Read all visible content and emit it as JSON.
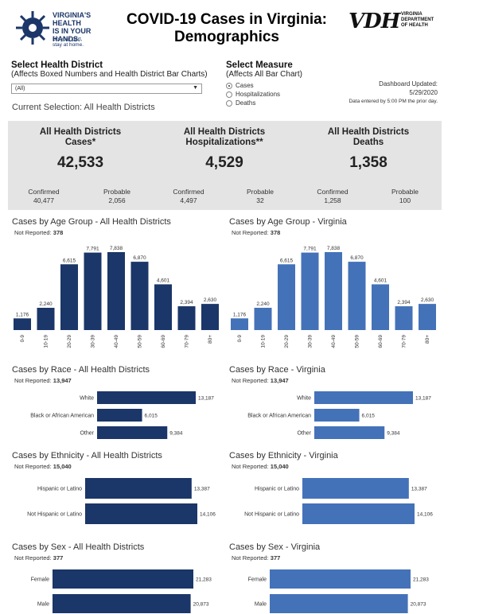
{
  "header": {
    "logo_lines": [
      "VIRGINIA'S",
      "HEALTH",
      "IS IN YOUR",
      "HANDS."
    ],
    "logo_tag": [
      "Do your part,",
      "stay at home."
    ],
    "title_line1": "COVID-19 Cases in Virginia:",
    "title_line2": "Demographics",
    "vdh_mark": "VDH",
    "vdh_org": [
      "VIRGINIA",
      "DEPARTMENT",
      "OF HEALTH"
    ]
  },
  "filters": {
    "district_label": "Select Health District",
    "district_sub": "(Affects Boxed Numbers and Health District Bar Charts)",
    "district_value": "(All)",
    "current_selection": "Current Selection: All Health Districts",
    "measure_label": "Select Measure",
    "measure_sub": "(Affects All Bar Chart)",
    "measure_options": [
      "Cases",
      "Hospitalizations",
      "Deaths"
    ],
    "measure_selected": "Cases"
  },
  "updated": {
    "label": "Dashboard Updated:",
    "date": "5/29/2020",
    "note": "Data entered by 5:00 PM the prior day."
  },
  "summary": [
    {
      "title1": "All Health Districts",
      "title2": "Cases*",
      "value": "42,533",
      "sub": [
        {
          "label": "Confirmed",
          "value": "40,477"
        },
        {
          "label": "Probable",
          "value": "2,056"
        }
      ]
    },
    {
      "title1": "All Health Districts",
      "title2": "Hospitalizations**",
      "value": "4,529",
      "sub": [
        {
          "label": "Confirmed",
          "value": "4,497"
        },
        {
          "label": "Probable",
          "value": "32"
        }
      ]
    },
    {
      "title1": "All Health Districts",
      "title2": "Deaths",
      "value": "1,358",
      "sub": [
        {
          "label": "Confirmed",
          "value": "1,258"
        },
        {
          "label": "Probable",
          "value": "100"
        }
      ]
    }
  ],
  "colors": {
    "district": "#1b3668",
    "virginia": "#4472b8"
  },
  "chart_data": [
    {
      "id": "age-district",
      "type": "bar",
      "title": "Cases by Age Group - All Health Districts",
      "not_reported_label": "Not Reported:",
      "not_reported": "378",
      "categories": [
        "0-9",
        "10-19",
        "20-29",
        "30-39",
        "40-49",
        "50-59",
        "60-69",
        "70-79",
        "80+"
      ],
      "values": [
        1176,
        2240,
        6615,
        7791,
        7838,
        6870,
        4601,
        2394,
        2630
      ],
      "labels": [
        "1,176",
        "2,240",
        "6,615",
        "7,791",
        "7,838",
        "6,870",
        "4,601",
        "2,394",
        "2,630"
      ],
      "color": "#1b3668"
    },
    {
      "id": "age-virginia",
      "type": "bar",
      "title": "Cases by Age Group - Virginia",
      "not_reported_label": "Not Reported:",
      "not_reported": "378",
      "categories": [
        "0-9",
        "10-19",
        "20-29",
        "30-39",
        "40-49",
        "50-59",
        "60-69",
        "70-79",
        "80+"
      ],
      "values": [
        1176,
        2240,
        6615,
        7791,
        7838,
        6870,
        4601,
        2394,
        2630
      ],
      "labels": [
        "1,176",
        "2,240",
        "6,615",
        "7,791",
        "7,838",
        "6,870",
        "4,601",
        "2,394",
        "2,630"
      ],
      "color": "#4472b8"
    },
    {
      "id": "race-district",
      "type": "bar",
      "orientation": "horizontal",
      "title": "Cases by Race - All Health Districts",
      "not_reported_label": "Not Reported:",
      "not_reported": "13,947",
      "categories": [
        "White",
        "Black or African American",
        "Other"
      ],
      "values": [
        13187,
        6015,
        9384
      ],
      "labels": [
        "13,187",
        "6,015",
        "9,384"
      ],
      "color": "#1b3668"
    },
    {
      "id": "race-virginia",
      "type": "bar",
      "orientation": "horizontal",
      "title": "Cases by Race - Virginia",
      "not_reported_label": "Not Reported:",
      "not_reported": "13,947",
      "categories": [
        "White",
        "Black or African American",
        "Other"
      ],
      "values": [
        13187,
        6015,
        9384
      ],
      "labels": [
        "13,187",
        "6,015",
        "9,384"
      ],
      "color": "#4472b8"
    },
    {
      "id": "eth-district",
      "type": "bar",
      "orientation": "horizontal",
      "title": "Cases by Ethnicity - All Health Districts",
      "not_reported_label": "Not Reported:",
      "not_reported": "15,040",
      "categories": [
        "Hispanic or Latino",
        "Not Hispanic or Latino"
      ],
      "values": [
        13387,
        14106
      ],
      "labels": [
        "13,387",
        "14,106"
      ],
      "color": "#1b3668"
    },
    {
      "id": "eth-virginia",
      "type": "bar",
      "orientation": "horizontal",
      "title": "Cases by Ethnicity - Virginia",
      "not_reported_label": "Not Reported:",
      "not_reported": "15,040",
      "categories": [
        "Hispanic or Latino",
        "Not Hispanic or Latino"
      ],
      "values": [
        13387,
        14106
      ],
      "labels": [
        "13,387",
        "14,106"
      ],
      "color": "#4472b8"
    },
    {
      "id": "sex-district",
      "type": "bar",
      "orientation": "horizontal",
      "title": "Cases by Sex - All Health Districts",
      "not_reported_label": "Not Reported:",
      "not_reported": "377",
      "categories": [
        "Female",
        "Male"
      ],
      "values": [
        21283,
        20873
      ],
      "labels": [
        "21,283",
        "20,873"
      ],
      "color": "#1b3668"
    },
    {
      "id": "sex-virginia",
      "type": "bar",
      "orientation": "horizontal",
      "title": "Cases by Sex - Virginia",
      "not_reported_label": "Not Reported:",
      "not_reported": "377",
      "categories": [
        "Female",
        "Male"
      ],
      "values": [
        21283,
        20873
      ],
      "labels": [
        "21,283",
        "20,873"
      ],
      "color": "#4472b8"
    }
  ]
}
